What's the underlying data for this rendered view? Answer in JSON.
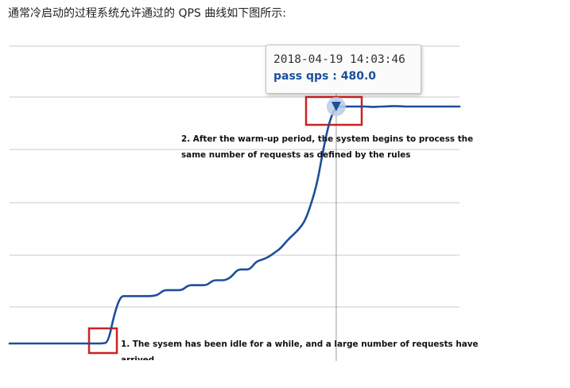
{
  "intro_text": "通常冷启动的过程系统允许通过的 QPS 曲线如下图所示:",
  "tooltip": {
    "time": "2018-04-19 14:03:46",
    "label": "pass qps",
    "separator": " : ",
    "value": "480.0"
  },
  "annotations": {
    "warmup_line1": "2. After the warm-up period, the system begins to process the",
    "warmup_line2": "same number of requests as defined by the rules",
    "idle_line1": "1. The sysem has been idle for a while, and a large number of requests have",
    "idle_line2": "arrived"
  },
  "colors": {
    "line": "#1f4e9a",
    "highlight_box": "#cc2222",
    "grid": "#c8c8c8",
    "crosshair": "#9a9a9a",
    "marker_halo": "#b9cde6"
  },
  "chart_data": {
    "type": "line",
    "title": "",
    "xlabel": "",
    "ylabel": "",
    "grid": true,
    "ylim": [
      0,
      500
    ],
    "x": [
      0,
      1,
      2,
      3,
      4,
      5,
      6,
      7,
      8,
      9,
      10,
      11,
      12,
      13,
      14,
      15,
      16,
      17,
      18,
      19,
      20,
      21,
      22,
      23,
      24,
      25,
      26,
      27,
      28,
      29,
      30,
      31,
      32,
      33,
      34,
      35,
      36,
      37,
      38,
      39,
      40,
      41,
      42,
      43,
      44,
      45,
      46,
      47,
      48,
      49,
      50,
      51,
      52,
      53,
      54,
      55,
      56,
      57,
      58,
      59,
      60,
      61,
      62,
      63,
      64,
      65,
      66,
      67,
      68,
      69,
      70,
      71,
      72,
      73
    ],
    "series": [
      {
        "values": [
          0,
          0,
          0,
          0,
          0,
          0,
          0,
          0,
          0,
          0,
          0,
          0,
          0,
          0,
          0,
          0,
          2,
          60,
          96,
          96,
          96,
          96,
          96,
          96,
          98,
          108,
          108,
          108,
          108,
          118,
          118,
          118,
          118,
          128,
          128,
          128,
          135,
          150,
          150,
          150,
          166,
          170,
          175,
          184,
          193,
          208,
          220,
          232,
          250,
          285,
          330,
          400,
          455,
          480,
          480,
          480,
          480,
          480,
          480,
          479,
          480,
          480,
          481,
          481,
          480,
          480,
          480,
          480,
          480,
          480,
          480,
          480,
          480,
          480
        ]
      }
    ],
    "highlight_index": 53
  }
}
